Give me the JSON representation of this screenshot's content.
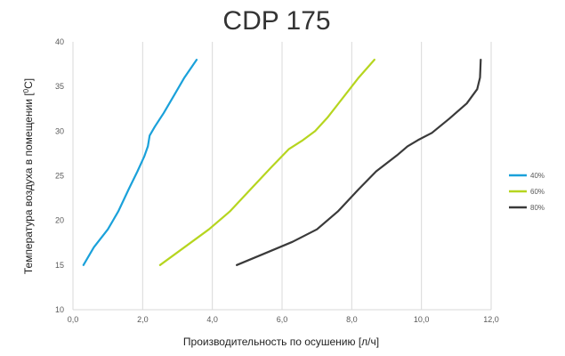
{
  "chart_data": {
    "type": "line",
    "title": "CDP 175",
    "xlabel": "Производительность по осушению [л/ч]",
    "ylabel_main": "Температура воздуха в помещении [",
    "ylabel_sup": "0",
    "ylabel_end": "C]",
    "xlim": [
      0,
      12
    ],
    "ylim": [
      10,
      40
    ],
    "x_ticks": [
      0,
      2,
      4,
      6,
      8,
      10,
      12
    ],
    "x_tick_labels": [
      "0,0",
      "2,0",
      "4,0",
      "6,0",
      "8,0",
      "10,0",
      "12,0"
    ],
    "y_ticks": [
      10,
      15,
      20,
      25,
      30,
      35,
      40
    ],
    "y_tick_labels": [
      "10",
      "15",
      "20",
      "25",
      "30",
      "35",
      "40"
    ],
    "grid": "vertical",
    "legend_position": "right",
    "series": [
      {
        "name": "40%",
        "color": "#1aa1da",
        "points": [
          [
            0.3,
            15
          ],
          [
            0.6,
            17
          ],
          [
            1.0,
            19
          ],
          [
            1.3,
            21
          ],
          [
            1.6,
            23.5
          ],
          [
            1.85,
            25.5
          ],
          [
            2.05,
            27.2
          ],
          [
            2.15,
            28.3
          ],
          [
            2.2,
            29.5
          ],
          [
            2.35,
            30.5
          ],
          [
            2.6,
            32
          ],
          [
            2.9,
            34
          ],
          [
            3.2,
            36
          ],
          [
            3.55,
            38
          ]
        ]
      },
      {
        "name": "60%",
        "color": "#b6d51f",
        "points": [
          [
            2.5,
            15
          ],
          [
            3.2,
            17
          ],
          [
            3.9,
            19
          ],
          [
            4.5,
            21
          ],
          [
            5.1,
            23.5
          ],
          [
            5.7,
            26
          ],
          [
            6.2,
            28
          ],
          [
            6.6,
            29
          ],
          [
            6.95,
            30
          ],
          [
            7.3,
            31.5
          ],
          [
            7.8,
            34
          ],
          [
            8.2,
            36
          ],
          [
            8.65,
            38
          ]
        ]
      },
      {
        "name": "80%",
        "color": "#3a3a3a",
        "points": [
          [
            4.7,
            15
          ],
          [
            5.5,
            16.3
          ],
          [
            6.3,
            17.6
          ],
          [
            7.0,
            19
          ],
          [
            7.6,
            21
          ],
          [
            8.2,
            23.5
          ],
          [
            8.7,
            25.5
          ],
          [
            9.3,
            27.3
          ],
          [
            9.6,
            28.3
          ],
          [
            9.9,
            29
          ],
          [
            10.3,
            29.8
          ],
          [
            10.8,
            31.4
          ],
          [
            11.3,
            33.1
          ],
          [
            11.6,
            34.7
          ],
          [
            11.68,
            36
          ],
          [
            11.7,
            38
          ]
        ]
      }
    ]
  }
}
